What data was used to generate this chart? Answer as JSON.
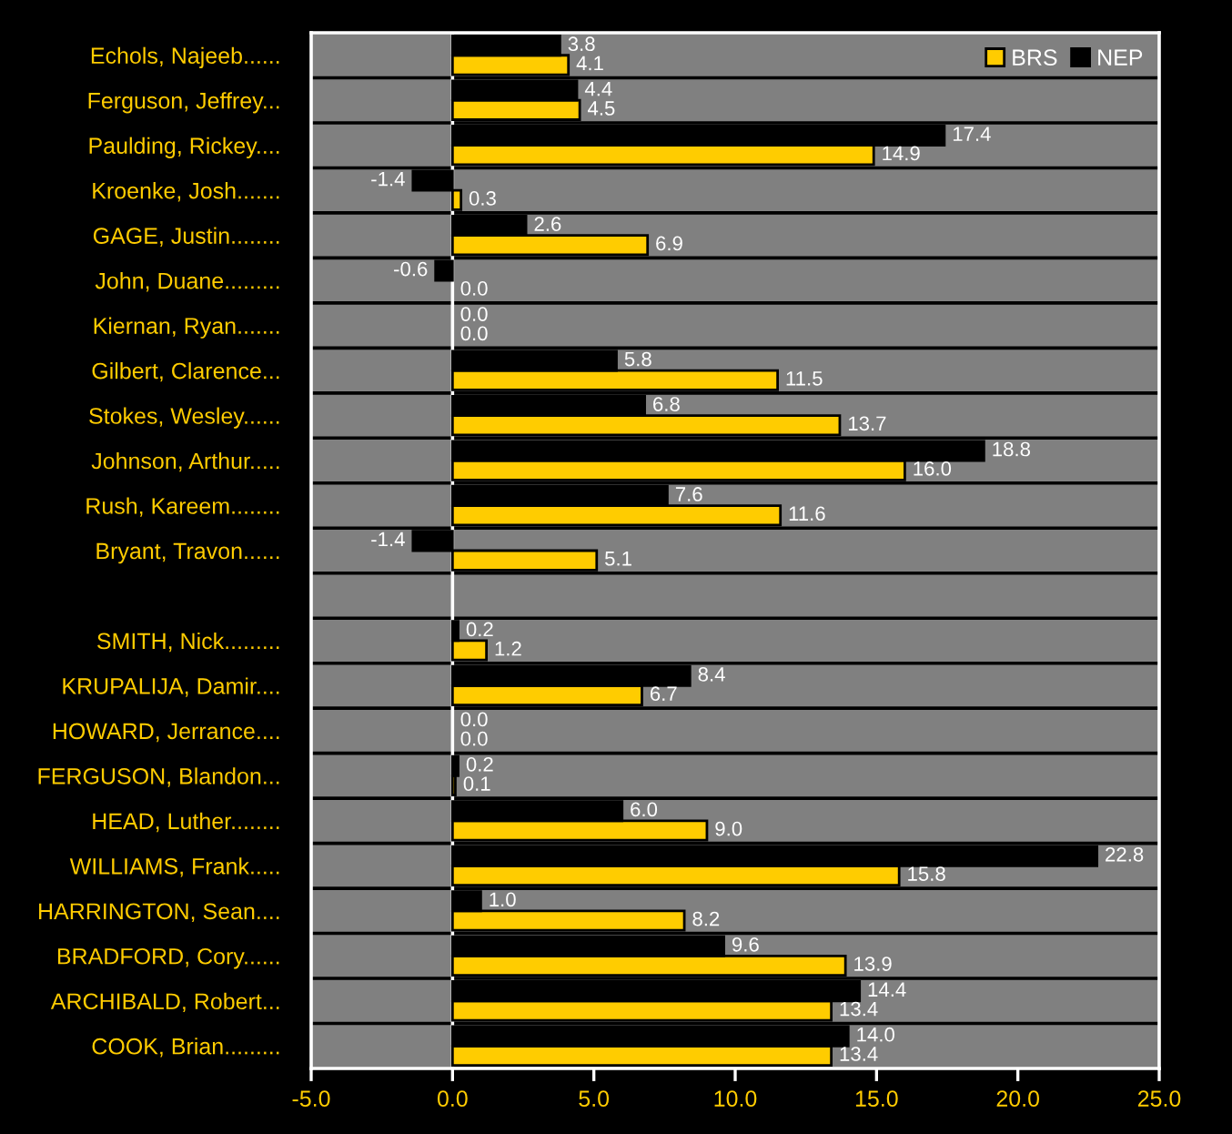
{
  "chart_data": {
    "type": "bar",
    "orientation": "horizontal",
    "categories": [
      "Echols, Najeeb......",
      "Ferguson, Jeffrey...",
      "Paulding, Rickey....",
      "Kroenke, Josh.......",
      "GAGE, Justin........",
      "John, Duane.........",
      "Kiernan, Ryan.......",
      "Gilbert, Clarence...",
      "Stokes, Wesley......",
      "Johnson, Arthur.....",
      "Rush, Kareem........",
      "Bryant, Travon......",
      null,
      "SMITH, Nick.........",
      "KRUPALIJA, Damir....",
      "HOWARD, Jerrance....",
      "FERGUSON, Blandon...",
      "HEAD, Luther........",
      "WILLIAMS, Frank.....",
      "HARRINGTON, Sean....",
      "BRADFORD, Cory......",
      "ARCHIBALD, Robert...",
      "COOK, Brian........."
    ],
    "series": [
      {
        "name": "BRS",
        "color": "#ffcc00",
        "values": [
          4.1,
          4.5,
          14.9,
          0.3,
          6.9,
          0.0,
          0.0,
          11.5,
          13.7,
          16.0,
          11.6,
          5.1,
          null,
          1.2,
          6.7,
          0.0,
          0.1,
          9.0,
          15.8,
          8.2,
          13.9,
          13.4,
          13.4
        ],
        "value_labels": [
          "4.1",
          "4.5",
          "14.9",
          "0.3",
          "6.9",
          "0.0",
          "0.0",
          "11.5",
          "13.7",
          "16.0",
          "11.6",
          "5.1",
          null,
          "1.2",
          "6.7",
          "0.0",
          "0.1",
          "9.0",
          "15.8",
          "8.2",
          "13.9",
          "13.4",
          "13.4"
        ]
      },
      {
        "name": "NEP",
        "color": "#000000",
        "values": [
          3.8,
          4.4,
          17.4,
          -1.4,
          2.6,
          -0.6,
          0.0,
          5.8,
          6.8,
          18.8,
          7.6,
          -1.4,
          null,
          0.2,
          8.4,
          0.0,
          0.2,
          6.0,
          22.8,
          1.0,
          9.6,
          14.4,
          14.0
        ],
        "value_labels": [
          "3.8",
          "4.4",
          "17.4",
          "-1.4",
          "2.6",
          "-0.6",
          "0.0",
          "5.8",
          "6.8",
          "18.8",
          "7.6",
          "-1.4",
          null,
          "0.2",
          "8.4",
          "0.0",
          "0.2",
          "6.0",
          "22.8",
          "1.0",
          "9.6",
          "14.4",
          "14.0"
        ]
      }
    ],
    "xlim": [
      -5,
      25
    ],
    "xticks": [
      {
        "value": -5,
        "label": "-5.0"
      },
      {
        "value": 0,
        "label": "0.0"
      },
      {
        "value": 5,
        "label": "5.0"
      },
      {
        "value": 10,
        "label": "10.0"
      },
      {
        "value": 15,
        "label": "15.0"
      },
      {
        "value": 20,
        "label": "20.0"
      },
      {
        "value": 25,
        "label": "25.0"
      }
    ],
    "grid": "y",
    "legend": "top right",
    "ref_lines": [
      {
        "axis": "x",
        "value": 0,
        "color": "#ffffff"
      }
    ]
  }
}
